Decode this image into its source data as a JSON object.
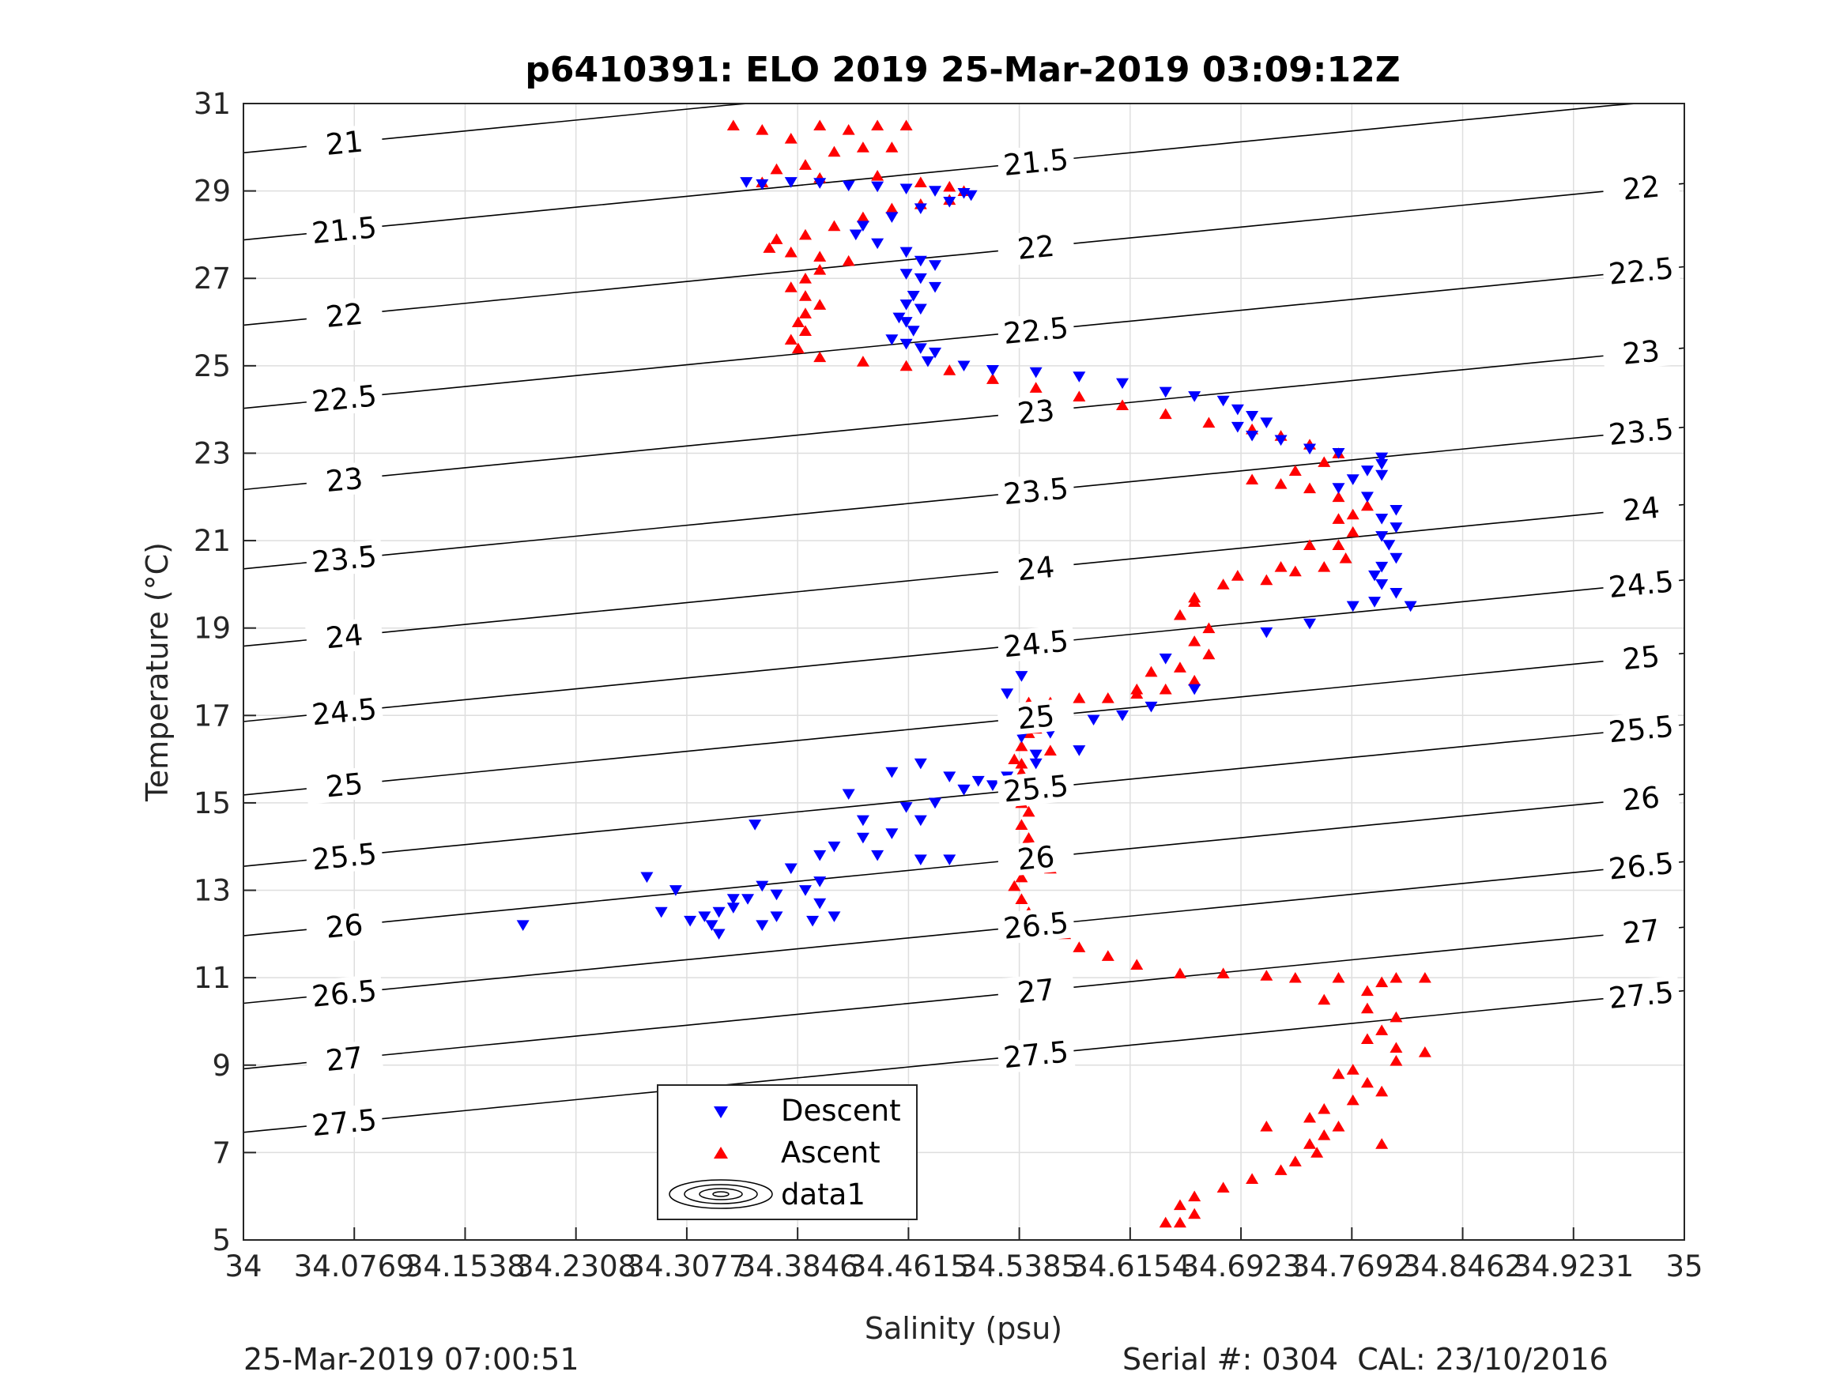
{
  "chart_data": {
    "type": "scatter",
    "title": "p6410391: ELO 2019 25-Mar-2019 03:09:12Z",
    "xlabel": "Salinity (psu)",
    "ylabel": "Temperature (°C)",
    "xlim": [
      34,
      35
    ],
    "ylim": [
      5,
      31
    ],
    "x_ticks": [
      "34",
      "34.0769",
      "34.1538",
      "34.2308",
      "34.3077",
      "34.3846",
      "34.4615",
      "34.5385",
      "34.6154",
      "34.6923",
      "34.7692",
      "34.8462",
      "34.9231",
      "35"
    ],
    "y_ticks": [
      "5",
      "7",
      "9",
      "11",
      "13",
      "15",
      "17",
      "19",
      "21",
      "23",
      "25",
      "27",
      "29",
      "31"
    ],
    "grid": true,
    "legend": {
      "placement": "bottom-center",
      "entries": [
        "Descent",
        "Ascent",
        "data1"
      ]
    },
    "series": [
      {
        "name": "Descent",
        "marker": "triangle-down",
        "color": "#0000ff",
        "points": [
          [
            34.349,
            29.2
          ],
          [
            34.36,
            29.15
          ],
          [
            34.38,
            29.2
          ],
          [
            34.4,
            29.18
          ],
          [
            34.42,
            29.12
          ],
          [
            34.44,
            29.1
          ],
          [
            34.46,
            29.05
          ],
          [
            34.48,
            29.0
          ],
          [
            34.5,
            28.95
          ],
          [
            34.505,
            28.9
          ],
          [
            34.49,
            28.75
          ],
          [
            34.47,
            28.6
          ],
          [
            34.45,
            28.4
          ],
          [
            34.43,
            28.2
          ],
          [
            34.425,
            28.0
          ],
          [
            34.44,
            27.8
          ],
          [
            34.46,
            27.6
          ],
          [
            34.47,
            27.4
          ],
          [
            34.48,
            27.3
          ],
          [
            34.46,
            27.1
          ],
          [
            34.47,
            27.0
          ],
          [
            34.48,
            26.8
          ],
          [
            34.465,
            26.6
          ],
          [
            34.46,
            26.4
          ],
          [
            34.47,
            26.3
          ],
          [
            34.455,
            26.1
          ],
          [
            34.46,
            26.0
          ],
          [
            34.465,
            25.8
          ],
          [
            34.45,
            25.6
          ],
          [
            34.46,
            25.5
          ],
          [
            34.47,
            25.4
          ],
          [
            34.48,
            25.3
          ],
          [
            34.475,
            25.1
          ],
          [
            34.5,
            25.0
          ],
          [
            34.52,
            24.9
          ],
          [
            34.55,
            24.85
          ],
          [
            34.58,
            24.75
          ],
          [
            34.61,
            24.6
          ],
          [
            34.64,
            24.4
          ],
          [
            34.66,
            24.3
          ],
          [
            34.68,
            24.2
          ],
          [
            34.69,
            24.0
          ],
          [
            34.7,
            23.85
          ],
          [
            34.71,
            23.7
          ],
          [
            34.69,
            23.6
          ],
          [
            34.7,
            23.4
          ],
          [
            34.72,
            23.3
          ],
          [
            34.74,
            23.1
          ],
          [
            34.76,
            23.0
          ],
          [
            34.79,
            22.9
          ],
          [
            34.79,
            22.75
          ],
          [
            34.78,
            22.6
          ],
          [
            34.79,
            22.5
          ],
          [
            34.77,
            22.4
          ],
          [
            34.76,
            22.2
          ],
          [
            34.78,
            22.0
          ],
          [
            34.8,
            21.7
          ],
          [
            34.79,
            21.5
          ],
          [
            34.8,
            21.3
          ],
          [
            34.79,
            21.1
          ],
          [
            34.795,
            20.9
          ],
          [
            34.8,
            20.6
          ],
          [
            34.79,
            20.4
          ],
          [
            34.785,
            20.2
          ],
          [
            34.79,
            20.0
          ],
          [
            34.8,
            19.8
          ],
          [
            34.785,
            19.6
          ],
          [
            34.81,
            19.5
          ],
          [
            34.77,
            19.5
          ],
          [
            34.74,
            19.1
          ],
          [
            34.71,
            18.9
          ],
          [
            34.64,
            18.3
          ],
          [
            34.66,
            17.6
          ],
          [
            34.63,
            17.2
          ],
          [
            34.61,
            17.0
          ],
          [
            34.59,
            16.9
          ],
          [
            34.57,
            17.1
          ],
          [
            34.56,
            16.6
          ],
          [
            34.58,
            16.2
          ],
          [
            34.55,
            16.1
          ],
          [
            34.53,
            17.5
          ],
          [
            34.54,
            17.9
          ],
          [
            34.56,
            16.9
          ],
          [
            34.54,
            16.5
          ],
          [
            34.55,
            15.9
          ],
          [
            34.53,
            15.6
          ],
          [
            34.51,
            15.5
          ],
          [
            34.5,
            15.3
          ],
          [
            34.48,
            15.0
          ],
          [
            34.46,
            14.9
          ],
          [
            34.47,
            14.6
          ],
          [
            34.45,
            14.3
          ],
          [
            34.43,
            14.2
          ],
          [
            34.41,
            14.0
          ],
          [
            34.4,
            13.8
          ],
          [
            34.44,
            13.8
          ],
          [
            34.47,
            13.7
          ],
          [
            34.49,
            13.7
          ],
          [
            34.38,
            13.5
          ],
          [
            34.4,
            13.2
          ],
          [
            34.37,
            12.9
          ],
          [
            34.35,
            12.8
          ],
          [
            34.34,
            12.6
          ],
          [
            34.33,
            12.5
          ],
          [
            34.32,
            12.4
          ],
          [
            34.325,
            12.2
          ],
          [
            34.33,
            12.0
          ],
          [
            34.31,
            12.3
          ],
          [
            34.29,
            12.5
          ],
          [
            34.3,
            13.0
          ],
          [
            34.28,
            13.3
          ],
          [
            34.34,
            12.8
          ],
          [
            34.36,
            13.1
          ],
          [
            34.39,
            13.0
          ],
          [
            34.4,
            12.7
          ],
          [
            34.41,
            12.4
          ],
          [
            34.395,
            12.3
          ],
          [
            34.37,
            12.4
          ],
          [
            34.36,
            12.2
          ],
          [
            34.355,
            14.5
          ],
          [
            34.42,
            15.2
          ],
          [
            34.45,
            15.7
          ],
          [
            34.47,
            15.9
          ],
          [
            34.49,
            15.6
          ],
          [
            34.5,
            15.3
          ],
          [
            34.52,
            15.4
          ],
          [
            34.48,
            15.0
          ],
          [
            34.43,
            14.6
          ],
          [
            34.194,
            12.2
          ]
        ]
      },
      {
        "name": "Ascent",
        "marker": "triangle-up",
        "color": "#ff0000",
        "points": [
          [
            34.34,
            30.5
          ],
          [
            34.36,
            30.4
          ],
          [
            34.38,
            30.2
          ],
          [
            34.4,
            30.5
          ],
          [
            34.42,
            30.4
          ],
          [
            34.44,
            30.5
          ],
          [
            34.46,
            30.5
          ],
          [
            34.43,
            30.0
          ],
          [
            34.45,
            30.0
          ],
          [
            34.41,
            29.9
          ],
          [
            34.39,
            29.6
          ],
          [
            34.37,
            29.5
          ],
          [
            34.36,
            29.2
          ],
          [
            34.4,
            29.3
          ],
          [
            34.44,
            29.35
          ],
          [
            34.47,
            29.2
          ],
          [
            34.49,
            29.1
          ],
          [
            34.5,
            29.0
          ],
          [
            34.49,
            28.8
          ],
          [
            34.47,
            28.7
          ],
          [
            34.45,
            28.6
          ],
          [
            34.43,
            28.4
          ],
          [
            34.41,
            28.2
          ],
          [
            34.39,
            28.0
          ],
          [
            34.37,
            27.9
          ],
          [
            34.365,
            27.7
          ],
          [
            34.38,
            27.6
          ],
          [
            34.4,
            27.5
          ],
          [
            34.42,
            27.4
          ],
          [
            34.4,
            27.2
          ],
          [
            34.39,
            27.0
          ],
          [
            34.38,
            26.8
          ],
          [
            34.39,
            26.6
          ],
          [
            34.4,
            26.4
          ],
          [
            34.39,
            26.2
          ],
          [
            34.385,
            26.0
          ],
          [
            34.39,
            25.8
          ],
          [
            34.38,
            25.6
          ],
          [
            34.385,
            25.4
          ],
          [
            34.4,
            25.2
          ],
          [
            34.43,
            25.1
          ],
          [
            34.46,
            25.0
          ],
          [
            34.49,
            24.9
          ],
          [
            34.52,
            24.7
          ],
          [
            34.55,
            24.5
          ],
          [
            34.58,
            24.3
          ],
          [
            34.61,
            24.1
          ],
          [
            34.64,
            23.9
          ],
          [
            34.67,
            23.7
          ],
          [
            34.7,
            23.55
          ],
          [
            34.72,
            23.4
          ],
          [
            34.74,
            23.2
          ],
          [
            34.76,
            23.0
          ],
          [
            34.75,
            22.8
          ],
          [
            34.73,
            22.6
          ],
          [
            34.72,
            22.3
          ],
          [
            34.74,
            22.2
          ],
          [
            34.76,
            22.0
          ],
          [
            34.78,
            21.8
          ],
          [
            34.77,
            21.6
          ],
          [
            34.76,
            21.5
          ],
          [
            34.77,
            21.2
          ],
          [
            34.76,
            20.9
          ],
          [
            34.765,
            20.6
          ],
          [
            34.75,
            20.4
          ],
          [
            34.73,
            20.3
          ],
          [
            34.71,
            20.1
          ],
          [
            34.68,
            20.0
          ],
          [
            34.66,
            19.7
          ],
          [
            34.65,
            19.3
          ],
          [
            34.67,
            19.0
          ],
          [
            34.66,
            18.7
          ],
          [
            34.67,
            18.4
          ],
          [
            34.65,
            18.1
          ],
          [
            34.66,
            17.8
          ],
          [
            34.64,
            17.6
          ],
          [
            34.62,
            17.5
          ],
          [
            34.6,
            17.4
          ],
          [
            34.58,
            17.4
          ],
          [
            34.56,
            17.3
          ],
          [
            34.545,
            17.3
          ],
          [
            34.54,
            17.0
          ],
          [
            34.545,
            16.6
          ],
          [
            34.54,
            16.3
          ],
          [
            34.535,
            16.0
          ],
          [
            34.54,
            15.7
          ],
          [
            34.535,
            15.4
          ],
          [
            34.54,
            15.1
          ],
          [
            34.545,
            14.8
          ],
          [
            34.54,
            14.5
          ],
          [
            34.545,
            14.2
          ],
          [
            34.55,
            13.9
          ],
          [
            34.545,
            13.6
          ],
          [
            34.54,
            13.3
          ],
          [
            34.535,
            13.1
          ],
          [
            34.54,
            12.8
          ],
          [
            34.545,
            12.5
          ],
          [
            34.55,
            12.2
          ],
          [
            34.56,
            12.0
          ],
          [
            34.58,
            11.7
          ],
          [
            34.6,
            11.5
          ],
          [
            34.62,
            11.3
          ],
          [
            34.65,
            11.1
          ],
          [
            34.68,
            11.1
          ],
          [
            34.71,
            11.05
          ],
          [
            34.73,
            11.0
          ],
          [
            34.76,
            11.0
          ],
          [
            34.79,
            10.9
          ],
          [
            34.8,
            11.0
          ],
          [
            34.82,
            11.0
          ],
          [
            34.78,
            10.7
          ],
          [
            34.75,
            10.5
          ],
          [
            34.78,
            10.3
          ],
          [
            34.8,
            10.1
          ],
          [
            34.79,
            9.8
          ],
          [
            34.78,
            9.6
          ],
          [
            34.8,
            9.4
          ],
          [
            34.82,
            9.3
          ],
          [
            34.8,
            9.1
          ],
          [
            34.77,
            8.9
          ],
          [
            34.76,
            8.8
          ],
          [
            34.78,
            8.6
          ],
          [
            34.79,
            8.4
          ],
          [
            34.77,
            8.2
          ],
          [
            34.75,
            8.0
          ],
          [
            34.74,
            7.8
          ],
          [
            34.76,
            7.6
          ],
          [
            34.75,
            7.4
          ],
          [
            34.74,
            7.2
          ],
          [
            34.745,
            7.0
          ],
          [
            34.73,
            6.8
          ],
          [
            34.72,
            6.6
          ],
          [
            34.7,
            6.4
          ],
          [
            34.68,
            6.2
          ],
          [
            34.66,
            6.0
          ],
          [
            34.65,
            5.8
          ],
          [
            34.66,
            5.6
          ],
          [
            34.65,
            5.4
          ],
          [
            34.64,
            5.4
          ],
          [
            34.71,
            7.6
          ],
          [
            34.79,
            7.2
          ],
          [
            34.62,
            17.6
          ],
          [
            34.63,
            18.0
          ],
          [
            34.66,
            19.6
          ],
          [
            34.69,
            20.2
          ],
          [
            34.72,
            20.4
          ],
          [
            34.74,
            20.9
          ],
          [
            34.7,
            22.4
          ],
          [
            34.55,
            16.7
          ],
          [
            34.56,
            16.2
          ],
          [
            34.54,
            15.9
          ],
          [
            34.54,
            15.0
          ],
          [
            34.545,
            14.0
          ],
          [
            34.56,
            13.5
          ],
          [
            34.56,
            12.4
          ],
          [
            34.57,
            12.0
          ]
        ]
      }
    ],
    "isopycnals": {
      "levels": [
        21,
        21.5,
        22,
        22.5,
        23,
        23.5,
        24,
        24.5,
        25,
        25.5,
        26,
        26.5,
        27,
        27.5
      ],
      "level_labels": [
        "21",
        "21.5",
        "22",
        "22.5",
        "23",
        "23.5",
        "24",
        "24.5",
        "25",
        "25.5",
        "26",
        "26.5",
        "27",
        "27.5"
      ],
      "line_color": "#000000"
    }
  },
  "footer": {
    "timestamp": "25-Mar-2019 07:00:51",
    "serial": "Serial #: 0304  CAL: 23/10/2016"
  }
}
